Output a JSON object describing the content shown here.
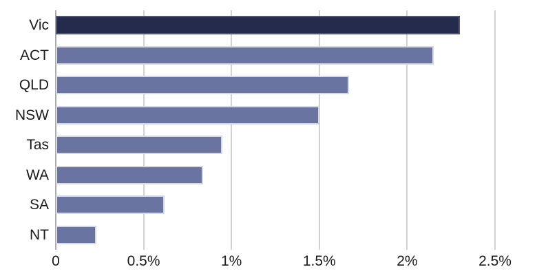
{
  "chart_data": {
    "type": "bar",
    "orientation": "horizontal",
    "title": "",
    "xlabel": "",
    "ylabel": "",
    "categories": [
      "Vic",
      "ACT",
      "QLD",
      "NSW",
      "Tas",
      "WA",
      "SA",
      "NT"
    ],
    "values": [
      2.3,
      2.15,
      1.67,
      1.5,
      0.95,
      0.84,
      0.62,
      0.23
    ],
    "value_unit": "%",
    "xlim": [
      0,
      2.5
    ],
    "x_ticks": [
      0,
      0.5,
      1.0,
      1.5,
      2.0,
      2.5
    ],
    "x_tick_labels": [
      "0",
      "0.5%",
      "1%",
      "1.5%",
      "2%",
      "2.5%"
    ],
    "grid": "vertical",
    "legend": "none",
    "highlight_category": "Vic",
    "colors": {
      "highlight_bar": "#252C4B",
      "highlight_bar_border": "#4E5675",
      "bar": "#6A74A1",
      "bar_border": "#D6D9E3",
      "gridline": "#D2D2D2",
      "axis_line": "#ABABAB",
      "text": "#1A1A1A"
    }
  }
}
